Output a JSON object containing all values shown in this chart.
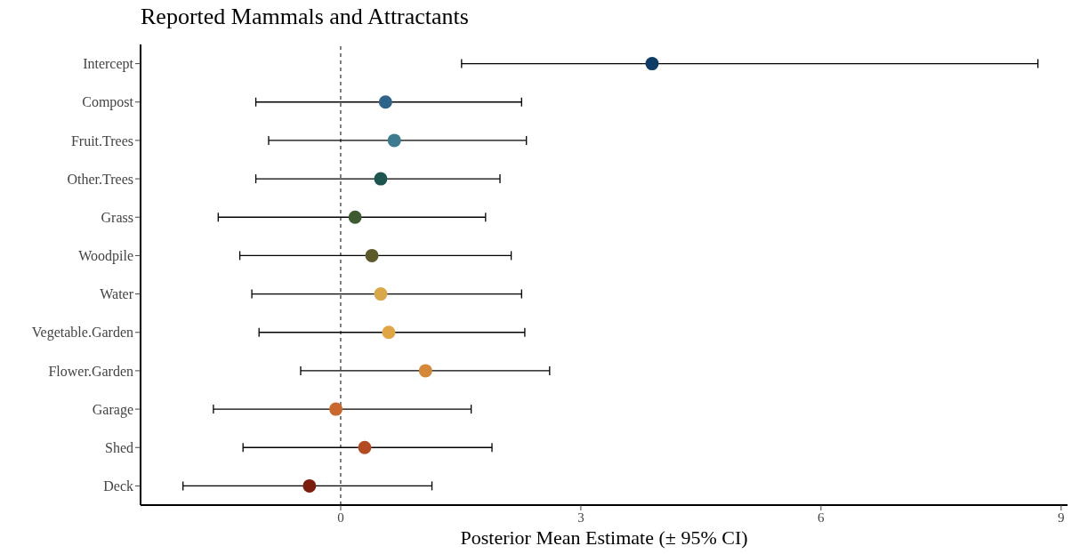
{
  "chart_data": {
    "type": "scatter",
    "title": "Reported Mammals and Attractants",
    "xlabel": "Posterior Mean Estimate (± 95% CI)",
    "categories": [
      "Intercept",
      "Compost",
      "Fruit.Trees",
      "Other.Trees",
      "Grass",
      "Woodpile",
      "Water",
      "Vegetable.Garden",
      "Flower.Garden",
      "Garage",
      "Shed",
      "Deck"
    ],
    "values": [
      3.89,
      0.56,
      0.67,
      0.5,
      0.18,
      0.39,
      0.5,
      0.6,
      1.06,
      -0.06,
      0.3,
      -0.39
    ],
    "errors": [
      [
        1.51,
        8.71
      ],
      [
        -1.06,
        2.26
      ],
      [
        -0.9,
        2.32
      ],
      [
        -1.06,
        1.99
      ],
      [
        -1.53,
        1.81
      ],
      [
        -1.26,
        2.13
      ],
      [
        -1.11,
        2.26
      ],
      [
        -1.02,
        2.3
      ],
      [
        -0.5,
        2.61
      ],
      [
        -1.59,
        1.63
      ],
      [
        -1.22,
        1.89
      ],
      [
        -1.97,
        1.14
      ]
    ],
    "colors": [
      "#0f3c66",
      "#2e6489",
      "#3e7b90",
      "#1f5550",
      "#3e5a33",
      "#5c5a2a",
      "#d8a84a",
      "#e0a645",
      "#d4893a",
      "#c8682e",
      "#b34a24",
      "#7a1e10"
    ],
    "orientation": "horizontal",
    "xlim": [
      -2.5,
      9.08
    ],
    "xticks": [
      0,
      3,
      6,
      9
    ],
    "ref_lines": [
      {
        "axis": "x",
        "value": 0,
        "line_style": "dashed",
        "color": "#000000"
      }
    ],
    "marker": "circle",
    "grid": false
  }
}
